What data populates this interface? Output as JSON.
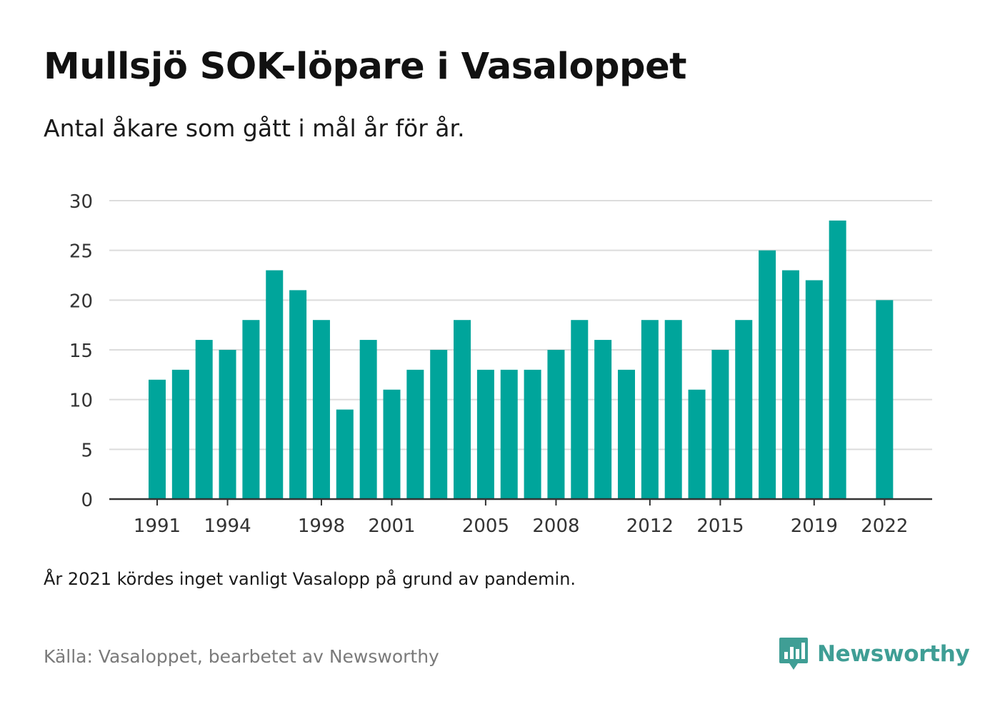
{
  "title": "Mullsjö SOK-löpare i Vasaloppet",
  "subtitle": "Antal åkare som gått i mål år för år.",
  "note": "År 2021 kördes inget vanligt Vasalopp på grund av pandemin.",
  "source": "Källa: Vasaloppet, bearbetet av Newsworthy",
  "brand": {
    "name": "Newsworthy",
    "color": "#3f9e95"
  },
  "chart_data": {
    "type": "bar",
    "title": "",
    "xlabel": "",
    "ylabel": "",
    "bar_color": "#00a59b",
    "ylim": [
      0,
      30
    ],
    "yticks": [
      0,
      5,
      10,
      15,
      20,
      25,
      30
    ],
    "xtick_labels": [
      1991,
      1994,
      1998,
      2001,
      2005,
      2008,
      2012,
      2015,
      2019,
      2022
    ],
    "grid": true,
    "legend": "none",
    "categories": [
      1991,
      1992,
      1993,
      1994,
      1995,
      1996,
      1997,
      1998,
      1999,
      2000,
      2001,
      2002,
      2003,
      2004,
      2005,
      2006,
      2007,
      2008,
      2009,
      2010,
      2011,
      2012,
      2013,
      2014,
      2015,
      2016,
      2017,
      2018,
      2019,
      2020,
      2021,
      2022
    ],
    "values": [
      12,
      13,
      16,
      15,
      18,
      23,
      21,
      18,
      9,
      16,
      11,
      13,
      15,
      18,
      13,
      13,
      13,
      15,
      18,
      16,
      13,
      18,
      18,
      11,
      15,
      18,
      25,
      23,
      22,
      28,
      null,
      20
    ]
  }
}
